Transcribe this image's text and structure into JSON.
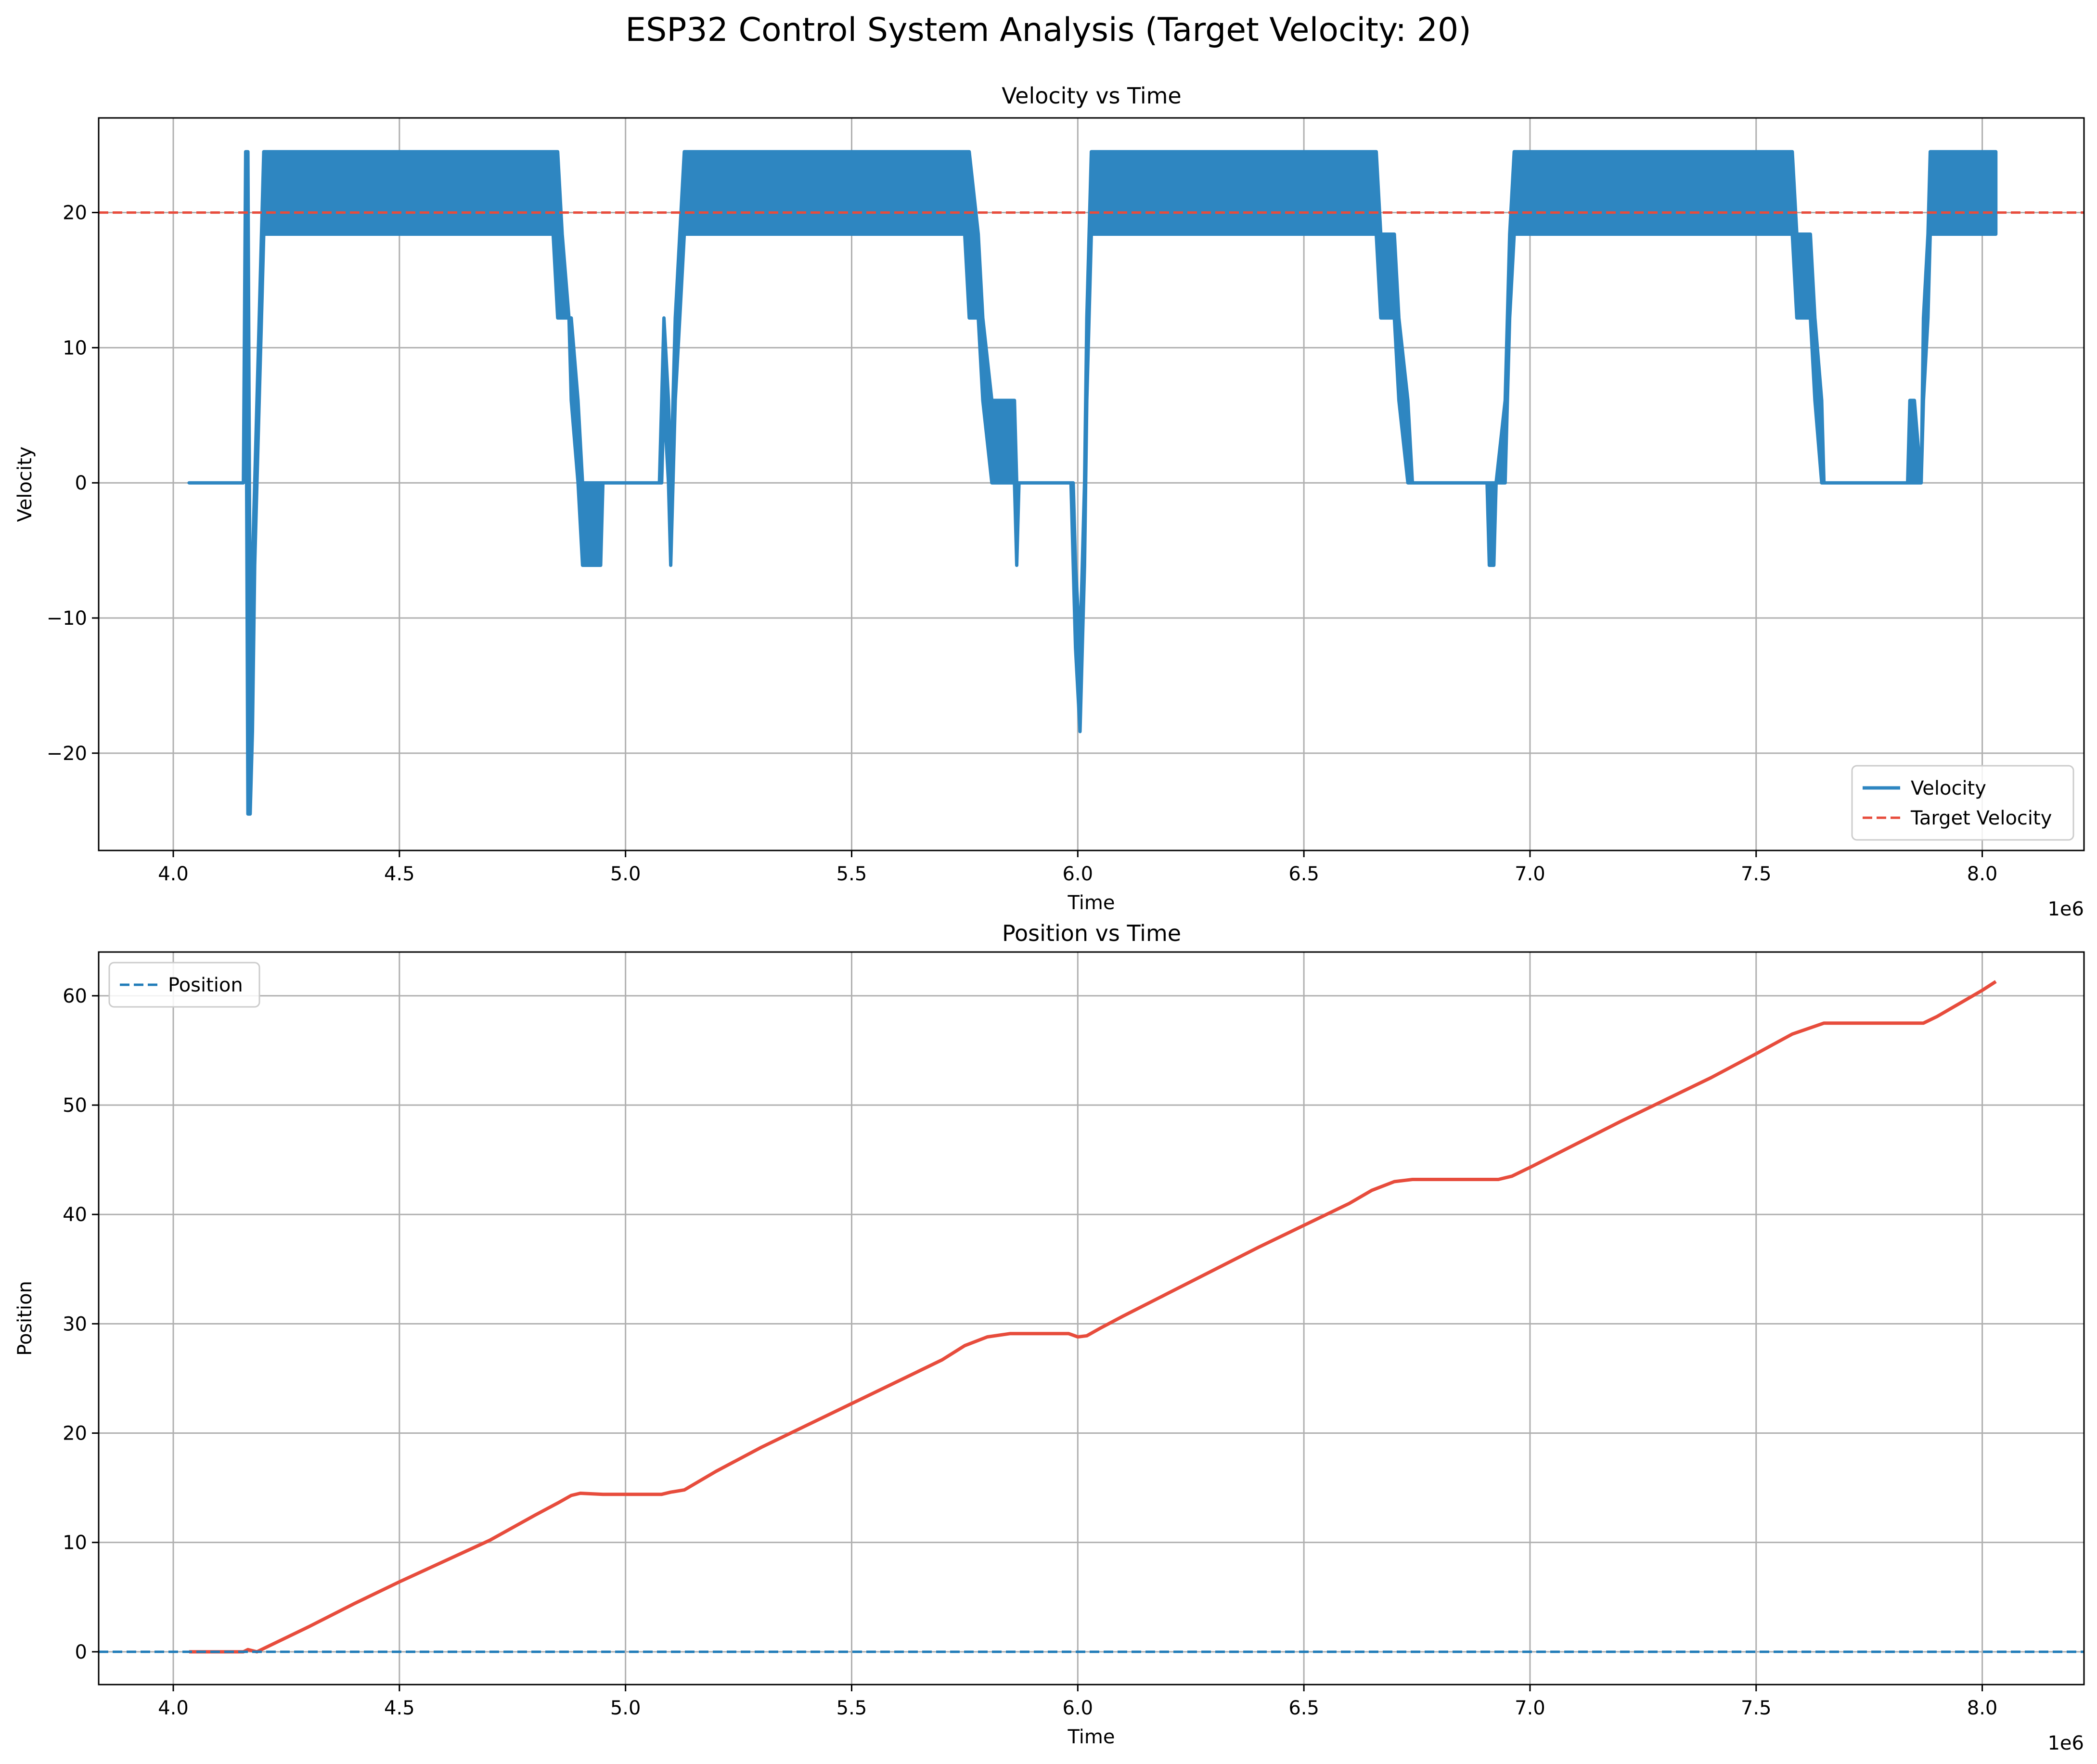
{
  "figure": {
    "suptitle": "ESP32 Control System Analysis (Target Velocity: 20)"
  },
  "chart_data": [
    {
      "type": "line",
      "title": "Velocity vs Time",
      "xlabel": "Time",
      "ylabel": "Velocity",
      "x_offset_label": "1e6",
      "xlim": [
        3.835,
        8.225
      ],
      "ylim": [
        -27.2,
        27.0
      ],
      "xticks": [
        4.0,
        4.5,
        5.0,
        5.5,
        6.0,
        6.5,
        7.0,
        7.5,
        8.0
      ],
      "xtick_labels": [
        "4.0",
        "4.5",
        "5.0",
        "5.5",
        "6.0",
        "6.5",
        "7.0",
        "7.5",
        "8.0"
      ],
      "yticks": [
        -20,
        -10,
        0,
        10,
        20
      ],
      "ytick_labels": [
        "−20",
        "−10",
        "0",
        "10",
        "20"
      ],
      "grid": true,
      "legend_position": "lower right",
      "series": [
        {
          "name": "Velocity",
          "color": "#2e86c1",
          "style": "solid",
          "kind": "band",
          "points": [
            [
              4.035,
              0,
              0
            ],
            [
              4.155,
              0,
              0
            ],
            [
              4.16,
              18.4,
              24.5
            ],
            [
              4.165,
              -24.5,
              24.5
            ],
            [
              4.17,
              -24.5,
              -12.2
            ],
            [
              4.175,
              -18.4,
              -6.1
            ],
            [
              4.18,
              -6.1,
              0
            ],
            [
              4.185,
              0,
              6.1
            ],
            [
              4.19,
              6.1,
              12.2
            ],
            [
              4.195,
              12.2,
              18.4
            ],
            [
              4.2,
              18.4,
              24.5
            ],
            [
              4.84,
              18.4,
              24.5
            ],
            [
              4.85,
              12.2,
              24.5
            ],
            [
              4.86,
              12.2,
              18.4
            ],
            [
              4.875,
              12.2,
              12.2
            ],
            [
              4.88,
              6.1,
              12.2
            ],
            [
              4.895,
              0,
              6.1
            ],
            [
              4.905,
              -6.1,
              0
            ],
            [
              4.945,
              -6.1,
              0
            ],
            [
              4.95,
              0,
              0
            ],
            [
              5.075,
              0,
              0
            ],
            [
              5.08,
              0,
              6.1
            ],
            [
              5.085,
              6.1,
              12.2
            ],
            [
              5.095,
              0,
              6.1
            ],
            [
              5.1,
              -6.1,
              0
            ],
            [
              5.11,
              6.1,
              12.2
            ],
            [
              5.12,
              12.2,
              18.4
            ],
            [
              5.13,
              18.4,
              24.5
            ],
            [
              5.75,
              18.4,
              24.5
            ],
            [
              5.76,
              12.2,
              24.5
            ],
            [
              5.78,
              12.2,
              18.4
            ],
            [
              5.79,
              6.1,
              12.2
            ],
            [
              5.81,
              0,
              6.1
            ],
            [
              5.83,
              0,
              6.1
            ],
            [
              5.86,
              0,
              6.1
            ],
            [
              5.865,
              -6.1,
              0
            ],
            [
              5.87,
              0,
              0
            ],
            [
              5.985,
              0,
              0
            ],
            [
              5.99,
              -6.1,
              0
            ],
            [
              5.995,
              -12.2,
              -6.1
            ],
            [
              6.005,
              -18.4,
              -12.2
            ],
            [
              6.01,
              -12.2,
              -6.1
            ],
            [
              6.015,
              -6.1,
              0
            ],
            [
              6.02,
              6.1,
              12.2
            ],
            [
              6.03,
              18.4,
              24.5
            ],
            [
              6.66,
              18.4,
              24.5
            ],
            [
              6.67,
              12.2,
              18.4
            ],
            [
              6.7,
              12.2,
              18.4
            ],
            [
              6.71,
              6.1,
              12.2
            ],
            [
              6.73,
              0,
              6.1
            ],
            [
              6.74,
              0,
              0
            ],
            [
              6.905,
              0,
              0
            ],
            [
              6.91,
              -6.1,
              0
            ],
            [
              6.92,
              -6.1,
              0
            ],
            [
              6.925,
              0,
              0
            ],
            [
              6.945,
              0,
              6.1
            ],
            [
              6.955,
              12.2,
              18.4
            ],
            [
              6.965,
              18.4,
              24.5
            ],
            [
              7.58,
              18.4,
              24.5
            ],
            [
              7.59,
              12.2,
              18.4
            ],
            [
              7.62,
              12.2,
              18.4
            ],
            [
              7.63,
              6.1,
              12.2
            ],
            [
              7.645,
              0,
              6.1
            ],
            [
              7.65,
              0,
              0
            ],
            [
              7.835,
              0,
              0
            ],
            [
              7.84,
              0,
              6.1
            ],
            [
              7.85,
              0,
              6.1
            ],
            [
              7.865,
              0,
              0
            ],
            [
              7.87,
              6.1,
              12.2
            ],
            [
              7.88,
              12.2,
              18.4
            ],
            [
              7.885,
              18.4,
              24.5
            ],
            [
              8.03,
              18.4,
              24.5
            ]
          ]
        },
        {
          "name": "Target Velocity",
          "color": "#e74c3c",
          "style": "dashed",
          "kind": "hline",
          "y": 20
        }
      ]
    },
    {
      "type": "line",
      "title": "Position vs Time",
      "xlabel": "Time",
      "ylabel": "Position",
      "x_offset_label": "1e6",
      "xlim": [
        3.835,
        8.225
      ],
      "ylim": [
        -3.0,
        64.0
      ],
      "xticks": [
        4.0,
        4.5,
        5.0,
        5.5,
        6.0,
        6.5,
        7.0,
        7.5,
        8.0
      ],
      "xtick_labels": [
        "4.0",
        "4.5",
        "5.0",
        "5.5",
        "6.0",
        "6.5",
        "7.0",
        "7.5",
        "8.0"
      ],
      "yticks": [
        0,
        10,
        20,
        30,
        40,
        50,
        60
      ],
      "ytick_labels": [
        "0",
        "10",
        "20",
        "30",
        "40",
        "50",
        "60"
      ],
      "grid": true,
      "legend_position": "upper left",
      "series": [
        {
          "color": "#e74c3c",
          "style": "solid",
          "kind": "line",
          "points": [
            [
              4.035,
              0
            ],
            [
              4.155,
              0
            ],
            [
              4.165,
              0.2
            ],
            [
              4.175,
              0.1
            ],
            [
              4.185,
              0
            ],
            [
              4.2,
              0.3
            ],
            [
              4.3,
              2.3
            ],
            [
              4.4,
              4.4
            ],
            [
              4.5,
              6.4
            ],
            [
              4.6,
              8.3
            ],
            [
              4.7,
              10.2
            ],
            [
              4.8,
              12.5
            ],
            [
              4.85,
              13.6
            ],
            [
              4.88,
              14.3
            ],
            [
              4.9,
              14.5
            ],
            [
              4.95,
              14.4
            ],
            [
              5.08,
              14.4
            ],
            [
              5.1,
              14.6
            ],
            [
              5.13,
              14.8
            ],
            [
              5.2,
              16.5
            ],
            [
              5.3,
              18.7
            ],
            [
              5.4,
              20.7
            ],
            [
              5.5,
              22.7
            ],
            [
              5.6,
              24.7
            ],
            [
              5.7,
              26.7
            ],
            [
              5.75,
              28.0
            ],
            [
              5.8,
              28.8
            ],
            [
              5.85,
              29.1
            ],
            [
              5.98,
              29.1
            ],
            [
              6.0,
              28.8
            ],
            [
              6.02,
              28.9
            ],
            [
              6.05,
              29.6
            ],
            [
              6.1,
              30.7
            ],
            [
              6.2,
              32.8
            ],
            [
              6.3,
              34.9
            ],
            [
              6.4,
              37.0
            ],
            [
              6.5,
              39.0
            ],
            [
              6.6,
              41.0
            ],
            [
              6.65,
              42.2
            ],
            [
              6.7,
              43.0
            ],
            [
              6.74,
              43.2
            ],
            [
              6.93,
              43.2
            ],
            [
              6.96,
              43.5
            ],
            [
              7.0,
              44.3
            ],
            [
              7.1,
              46.4
            ],
            [
              7.2,
              48.5
            ],
            [
              7.3,
              50.5
            ],
            [
              7.4,
              52.5
            ],
            [
              7.5,
              54.7
            ],
            [
              7.58,
              56.5
            ],
            [
              7.65,
              57.5
            ],
            [
              7.87,
              57.5
            ],
            [
              7.9,
              58.1
            ],
            [
              8.0,
              60.5
            ],
            [
              8.03,
              61.3
            ]
          ]
        },
        {
          "name": "Position",
          "color": "#1f7bb8",
          "style": "dashed",
          "kind": "hline",
          "y": 0
        }
      ]
    }
  ]
}
